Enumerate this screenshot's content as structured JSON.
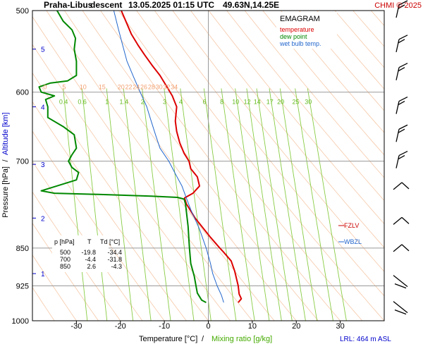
{
  "header": {
    "station": "Praha-Libus",
    "mode": "descent",
    "datetime": "13.05.2025 01:15 UTC",
    "coords": "49.63N,14.25E",
    "copyright": "CHMI © 2025"
  },
  "legend": {
    "title": "EMAGRAM",
    "temperature": "temperature",
    "dewpoint": "dew point",
    "wetbulb": "wet bulb temp."
  },
  "axes": {
    "y_label_pressure": "Pressure [hPa]",
    "y_label_sep": "/",
    "y_label_altitude": "Altitude [km]",
    "x_label_temp": "Temperature [°C]",
    "x_label_sep": "/",
    "x_label_mix": "Mixing ratio [g/kg]",
    "pressure_ticks": [
      500,
      600,
      700,
      850,
      925,
      1000
    ],
    "temp_ticks": [
      -30,
      -20,
      -10,
      0,
      10,
      20,
      30
    ],
    "altitude_ticks": [
      {
        "km": "1",
        "p": 900
      },
      {
        "km": "2",
        "p": 795
      },
      {
        "km": "3",
        "p": 705
      },
      {
        "km": "4",
        "p": 620
      },
      {
        "km": "5",
        "p": 545
      }
    ],
    "theta_labels": [
      "0",
      "5",
      "10",
      "15",
      "20",
      "22",
      "24",
      "26",
      "28",
      "30",
      "32",
      "34"
    ],
    "mix_labels": [
      "0.4",
      "0.6",
      "1",
      "1.4",
      "2",
      "3",
      "4",
      "6",
      "8",
      "10",
      "12",
      "14",
      "17",
      "20",
      "25",
      "30"
    ]
  },
  "levels": {
    "fzlv": "FZLV",
    "wbzl": "WBZL"
  },
  "table": {
    "headers": [
      "p [hPa]",
      "T",
      "Td [°C]"
    ],
    "rows": [
      [
        "500",
        "-19.8",
        "-34.4"
      ],
      [
        "700",
        "-4.4",
        "-31.8"
      ],
      [
        "850",
        "2.6",
        "-4.3"
      ]
    ]
  },
  "footer": {
    "lrl": "LRL: 464 m ASL"
  },
  "colors": {
    "temperature": "#dd0000",
    "dewpoint": "#008800",
    "wetbulb": "#2266cc",
    "dry_adiabat": "#f6c8a8",
    "mixing_line": "#88cc44",
    "grid": "#999999",
    "altitude": "#0000cc"
  },
  "chart_data": {
    "type": "line",
    "title": "EMAGRAM",
    "xlabel": "Temperature [°C] / Mixing ratio [g/kg]",
    "ylabel": "Pressure [hPa] / Altitude [km]",
    "xlim": [
      -40,
      40
    ],
    "ylim": [
      1000,
      500
    ],
    "y_scale": "log",
    "grid": true,
    "legend_position": "top-right",
    "series": [
      {
        "name": "temperature",
        "points": [
          [
            6.8,
            960
          ],
          [
            7.5,
            952
          ],
          [
            7.0,
            942
          ],
          [
            6.8,
            925
          ],
          [
            6.0,
            895
          ],
          [
            5.2,
            875
          ],
          [
            3.5,
            858
          ],
          [
            2.6,
            850
          ],
          [
            0.5,
            830
          ],
          [
            -3.0,
            795
          ],
          [
            -5.0,
            770
          ],
          [
            -5.4,
            760
          ],
          [
            -3.5,
            752
          ],
          [
            -2.0,
            740
          ],
          [
            -2.5,
            725
          ],
          [
            -4.0,
            712
          ],
          [
            -4.4,
            700
          ],
          [
            -5.5,
            688
          ],
          [
            -6.5,
            672
          ],
          [
            -7.2,
            655
          ],
          [
            -7.5,
            640
          ],
          [
            -7.2,
            620
          ],
          [
            -8.2,
            605
          ],
          [
            -9.5,
            592
          ],
          [
            -11.0,
            578
          ],
          [
            -12.8,
            565
          ],
          [
            -14.5,
            552
          ],
          [
            -16.0,
            540
          ],
          [
            -17.5,
            527
          ],
          [
            -18.5,
            515
          ],
          [
            -19.8,
            500
          ]
        ]
      },
      {
        "name": "dew point",
        "points": [
          [
            -0.5,
            960
          ],
          [
            -1.5,
            955
          ],
          [
            -2.5,
            940
          ],
          [
            -2.8,
            925
          ],
          [
            -3.2,
            905
          ],
          [
            -4.0,
            880
          ],
          [
            -4.3,
            850
          ],
          [
            -4.6,
            810
          ],
          [
            -5.2,
            770
          ],
          [
            -5.5,
            762
          ],
          [
            -7.0,
            759
          ],
          [
            -13.0,
            757
          ],
          [
            -25.0,
            754
          ],
          [
            -35.0,
            752
          ],
          [
            -38.0,
            748
          ],
          [
            -30.0,
            730
          ],
          [
            -29.5,
            718
          ],
          [
            -31.0,
            710
          ],
          [
            -31.8,
            700
          ],
          [
            -31.0,
            690
          ],
          [
            -30.0,
            680
          ],
          [
            -30.5,
            660
          ],
          [
            -33.0,
            648
          ],
          [
            -36.5,
            635
          ],
          [
            -36.5,
            620
          ],
          [
            -37.0,
            610
          ],
          [
            -35.0,
            605
          ],
          [
            -38.0,
            600
          ],
          [
            -38.5,
            593
          ],
          [
            -36.0,
            588
          ],
          [
            -32.0,
            585
          ],
          [
            -30.0,
            578
          ],
          [
            -30.0,
            560
          ],
          [
            -30.5,
            545
          ],
          [
            -30.2,
            532
          ],
          [
            -31.0,
            522
          ],
          [
            -33.0,
            512
          ],
          [
            -34.4,
            500
          ]
        ]
      },
      {
        "name": "wet bulb temp.",
        "points": [
          [
            3.5,
            960
          ],
          [
            3.0,
            945
          ],
          [
            2.0,
            925
          ],
          [
            1.0,
            900
          ],
          [
            0.5,
            880
          ],
          [
            -0.5,
            850
          ],
          [
            -2.0,
            815
          ],
          [
            -4.0,
            780
          ],
          [
            -5.0,
            760
          ],
          [
            -6.0,
            740
          ],
          [
            -7.5,
            720
          ],
          [
            -9.0,
            700
          ],
          [
            -11.0,
            680
          ],
          [
            -12.0,
            660
          ],
          [
            -13.0,
            640
          ],
          [
            -14.0,
            620
          ],
          [
            -15.5,
            600
          ],
          [
            -17.0,
            580
          ],
          [
            -18.5,
            560
          ],
          [
            -19.5,
            540
          ],
          [
            -20.5,
            520
          ],
          [
            -21.5,
            500
          ]
        ]
      }
    ],
    "freezing_level_hpa": 815,
    "wet_bulb_zero_hpa": 850,
    "wind_barb_levels_hpa": [
      500,
      540,
      575,
      620,
      660,
      700,
      740,
      800,
      850,
      915,
      970
    ]
  }
}
